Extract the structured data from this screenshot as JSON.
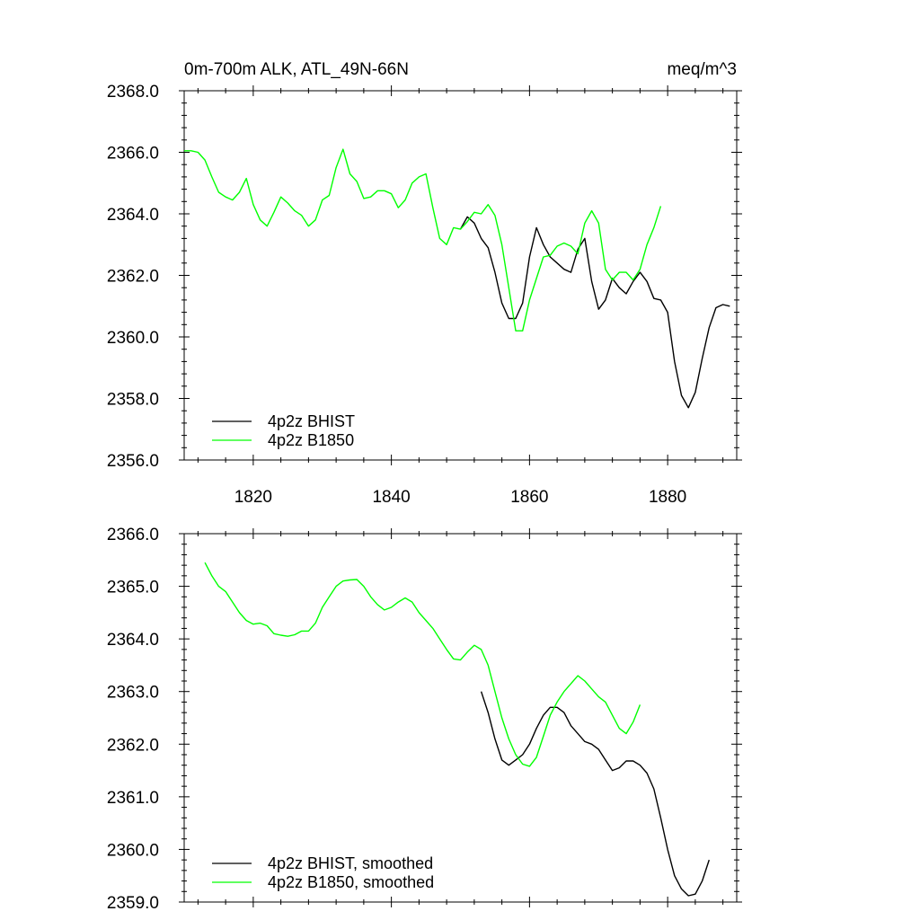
{
  "chart_data": [
    {
      "type": "line",
      "title_left": "0m-700m ALK, ATL_49N-66N",
      "title_right": "meq/m^3",
      "xlabel": "",
      "ylabel": "",
      "xlim": [
        1810,
        1890
      ],
      "ylim": [
        2356.0,
        2368.0
      ],
      "x_ticks": [
        1820,
        1840,
        1860,
        1880
      ],
      "y_ticks": [
        "2356.0",
        "2358.0",
        "2360.0",
        "2362.0",
        "2364.0",
        "2366.0",
        "2368.0"
      ],
      "grid": false,
      "legend_position": "bottom-left",
      "series": [
        {
          "name": "4p2z BHIST",
          "color": "#000000",
          "x": [
            1850,
            1851,
            1852,
            1853,
            1854,
            1855,
            1856,
            1857,
            1858,
            1859,
            1860,
            1861,
            1862,
            1863,
            1864,
            1865,
            1866,
            1867,
            1868,
            1869,
            1870,
            1871,
            1872,
            1873,
            1874,
            1875,
            1876,
            1877,
            1878,
            1879,
            1880,
            1881,
            1882,
            1883,
            1884,
            1885,
            1886,
            1887,
            1888,
            1889
          ],
          "y": [
            2363.5,
            2363.9,
            2363.7,
            2363.2,
            2362.9,
            2362.1,
            2361.1,
            2360.6,
            2360.6,
            2361.1,
            2362.6,
            2363.55,
            2363.0,
            2362.6,
            2362.4,
            2362.2,
            2362.1,
            2362.85,
            2363.2,
            2361.8,
            2360.9,
            2361.2,
            2361.9,
            2361.6,
            2361.4,
            2361.8,
            2362.1,
            2361.8,
            2361.25,
            2361.2,
            2360.8,
            2359.2,
            2358.1,
            2357.7,
            2358.2,
            2359.3,
            2360.3,
            2360.95,
            2361.05,
            2361.0
          ]
        },
        {
          "name": "4p2z B1850",
          "color": "#00ff00",
          "x": [
            1810,
            1811,
            1812,
            1813,
            1814,
            1815,
            1816,
            1817,
            1818,
            1819,
            1820,
            1821,
            1822,
            1823,
            1824,
            1825,
            1826,
            1827,
            1828,
            1829,
            1830,
            1831,
            1832,
            1833,
            1834,
            1835,
            1836,
            1837,
            1838,
            1839,
            1840,
            1841,
            1842,
            1843,
            1844,
            1845,
            1846,
            1847,
            1848,
            1849,
            1850,
            1851,
            1852,
            1853,
            1854,
            1855,
            1856,
            1857,
            1858,
            1859,
            1860,
            1861,
            1862,
            1863,
            1864,
            1865,
            1866,
            1867,
            1868,
            1869,
            1870,
            1871,
            1872,
            1873,
            1874,
            1875,
            1876,
            1877,
            1878,
            1879
          ],
          "y": [
            2366.05,
            2366.05,
            2366.0,
            2365.75,
            2365.2,
            2364.7,
            2364.55,
            2364.45,
            2364.7,
            2365.15,
            2364.3,
            2363.8,
            2363.6,
            2364.05,
            2364.55,
            2364.35,
            2364.1,
            2363.95,
            2363.6,
            2363.8,
            2364.45,
            2364.6,
            2365.5,
            2366.1,
            2365.3,
            2365.05,
            2364.5,
            2364.55,
            2364.75,
            2364.75,
            2364.65,
            2364.2,
            2364.45,
            2365.0,
            2365.2,
            2365.3,
            2364.2,
            2363.2,
            2363.0,
            2363.55,
            2363.5,
            2363.75,
            2364.05,
            2364.0,
            2364.3,
            2363.95,
            2363.0,
            2361.6,
            2360.2,
            2360.2,
            2361.2,
            2361.9,
            2362.6,
            2362.65,
            2362.95,
            2363.05,
            2362.95,
            2362.7,
            2363.7,
            2364.1,
            2363.7,
            2362.2,
            2361.85,
            2362.1,
            2362.1,
            2361.85,
            2362.2,
            2363.0,
            2363.55,
            2364.25
          ]
        }
      ]
    },
    {
      "type": "line",
      "title_left": "",
      "title_right": "",
      "xlabel": "",
      "ylabel": "",
      "xlim": [
        1810,
        1890
      ],
      "ylim": [
        2359.0,
        2366.0
      ],
      "x_ticks": [],
      "y_ticks": [
        "2359.0",
        "2360.0",
        "2361.0",
        "2362.0",
        "2363.0",
        "2364.0",
        "2365.0",
        "2366.0"
      ],
      "grid": false,
      "legend_position": "bottom-left",
      "series": [
        {
          "name": "4p2z BHIST, smoothed",
          "color": "#000000",
          "x": [
            1853,
            1854,
            1855,
            1856,
            1857,
            1858,
            1859,
            1860,
            1861,
            1862,
            1863,
            1864,
            1865,
            1866,
            1867,
            1868,
            1869,
            1870,
            1871,
            1872,
            1873,
            1874,
            1875,
            1876,
            1877,
            1878,
            1879,
            1880,
            1881,
            1882,
            1883,
            1884,
            1885,
            1886
          ],
          "y": [
            2363.0,
            2362.6,
            2362.1,
            2361.7,
            2361.6,
            2361.7,
            2361.8,
            2362.0,
            2362.3,
            2362.55,
            2362.7,
            2362.7,
            2362.6,
            2362.35,
            2362.2,
            2362.05,
            2362.0,
            2361.9,
            2361.7,
            2361.5,
            2361.55,
            2361.68,
            2361.68,
            2361.6,
            2361.45,
            2361.15,
            2360.6,
            2360.0,
            2359.5,
            2359.25,
            2359.12,
            2359.15,
            2359.4,
            2359.8
          ]
        },
        {
          "name": "4p2z B1850, smoothed",
          "color": "#00ff00",
          "x": [
            1813,
            1814,
            1815,
            1816,
            1817,
            1818,
            1819,
            1820,
            1821,
            1822,
            1823,
            1824,
            1825,
            1826,
            1827,
            1828,
            1829,
            1830,
            1831,
            1832,
            1833,
            1834,
            1835,
            1836,
            1837,
            1838,
            1839,
            1840,
            1841,
            1842,
            1843,
            1844,
            1845,
            1846,
            1847,
            1848,
            1849,
            1850,
            1851,
            1852,
            1853,
            1854,
            1855,
            1856,
            1857,
            1858,
            1859,
            1860,
            1861,
            1862,
            1863,
            1864,
            1865,
            1866,
            1867,
            1868,
            1869,
            1870,
            1871,
            1872,
            1873,
            1874,
            1875,
            1876
          ],
          "y": [
            2365.45,
            2365.2,
            2365.0,
            2364.9,
            2364.7,
            2364.5,
            2364.35,
            2364.28,
            2364.3,
            2364.25,
            2364.1,
            2364.07,
            2364.05,
            2364.08,
            2364.15,
            2364.15,
            2364.3,
            2364.6,
            2364.8,
            2365.0,
            2365.1,
            2365.12,
            2365.13,
            2365.0,
            2364.8,
            2364.65,
            2364.55,
            2364.6,
            2364.7,
            2364.78,
            2364.7,
            2364.5,
            2364.35,
            2364.2,
            2364.0,
            2363.8,
            2363.62,
            2363.6,
            2363.75,
            2363.88,
            2363.8,
            2363.5,
            2363.0,
            2362.5,
            2362.1,
            2361.8,
            2361.62,
            2361.58,
            2361.75,
            2362.15,
            2362.55,
            2362.8,
            2363.0,
            2363.15,
            2363.3,
            2363.2,
            2363.05,
            2362.9,
            2362.8,
            2362.55,
            2362.3,
            2362.2,
            2362.42,
            2362.75
          ]
        }
      ]
    }
  ]
}
